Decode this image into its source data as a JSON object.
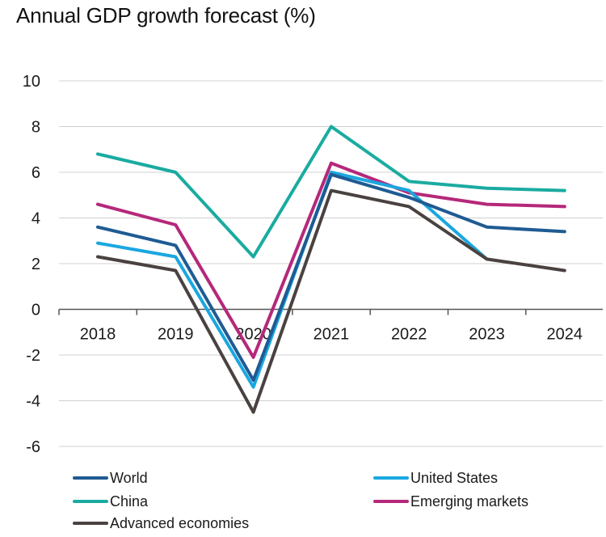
{
  "chart_data": {
    "type": "line",
    "title": "Annual GDP growth forecast (%)",
    "x": [
      "2018",
      "2019",
      "2020",
      "2021",
      "2022",
      "2023",
      "2024"
    ],
    "ylim": [
      -6,
      10
    ],
    "yticks": [
      "10",
      "8",
      "6",
      "4",
      "2",
      "0",
      "-2",
      "-4",
      "-6"
    ],
    "grid": "horizontal",
    "legend_position": "bottom",
    "series": [
      {
        "name": "World",
        "color": "#1f5b93",
        "values": [
          3.6,
          2.8,
          -3.1,
          5.9,
          4.9,
          3.6,
          3.4
        ]
      },
      {
        "name": "United States",
        "color": "#1aa7e0",
        "values": [
          2.9,
          2.3,
          -3.4,
          6.0,
          5.2,
          2.2,
          null
        ]
      },
      {
        "name": "China",
        "color": "#1aaba0",
        "values": [
          6.8,
          6.0,
          2.3,
          8.0,
          5.6,
          5.3,
          5.2
        ]
      },
      {
        "name": "Emerging markets",
        "color": "#b5287a",
        "values": [
          4.6,
          3.7,
          -2.1,
          6.4,
          5.1,
          4.6,
          4.5
        ]
      },
      {
        "name": "Advanced economies",
        "color": "#4a4240",
        "values": [
          2.3,
          1.7,
          -4.5,
          5.2,
          4.5,
          2.2,
          1.7
        ]
      }
    ]
  }
}
